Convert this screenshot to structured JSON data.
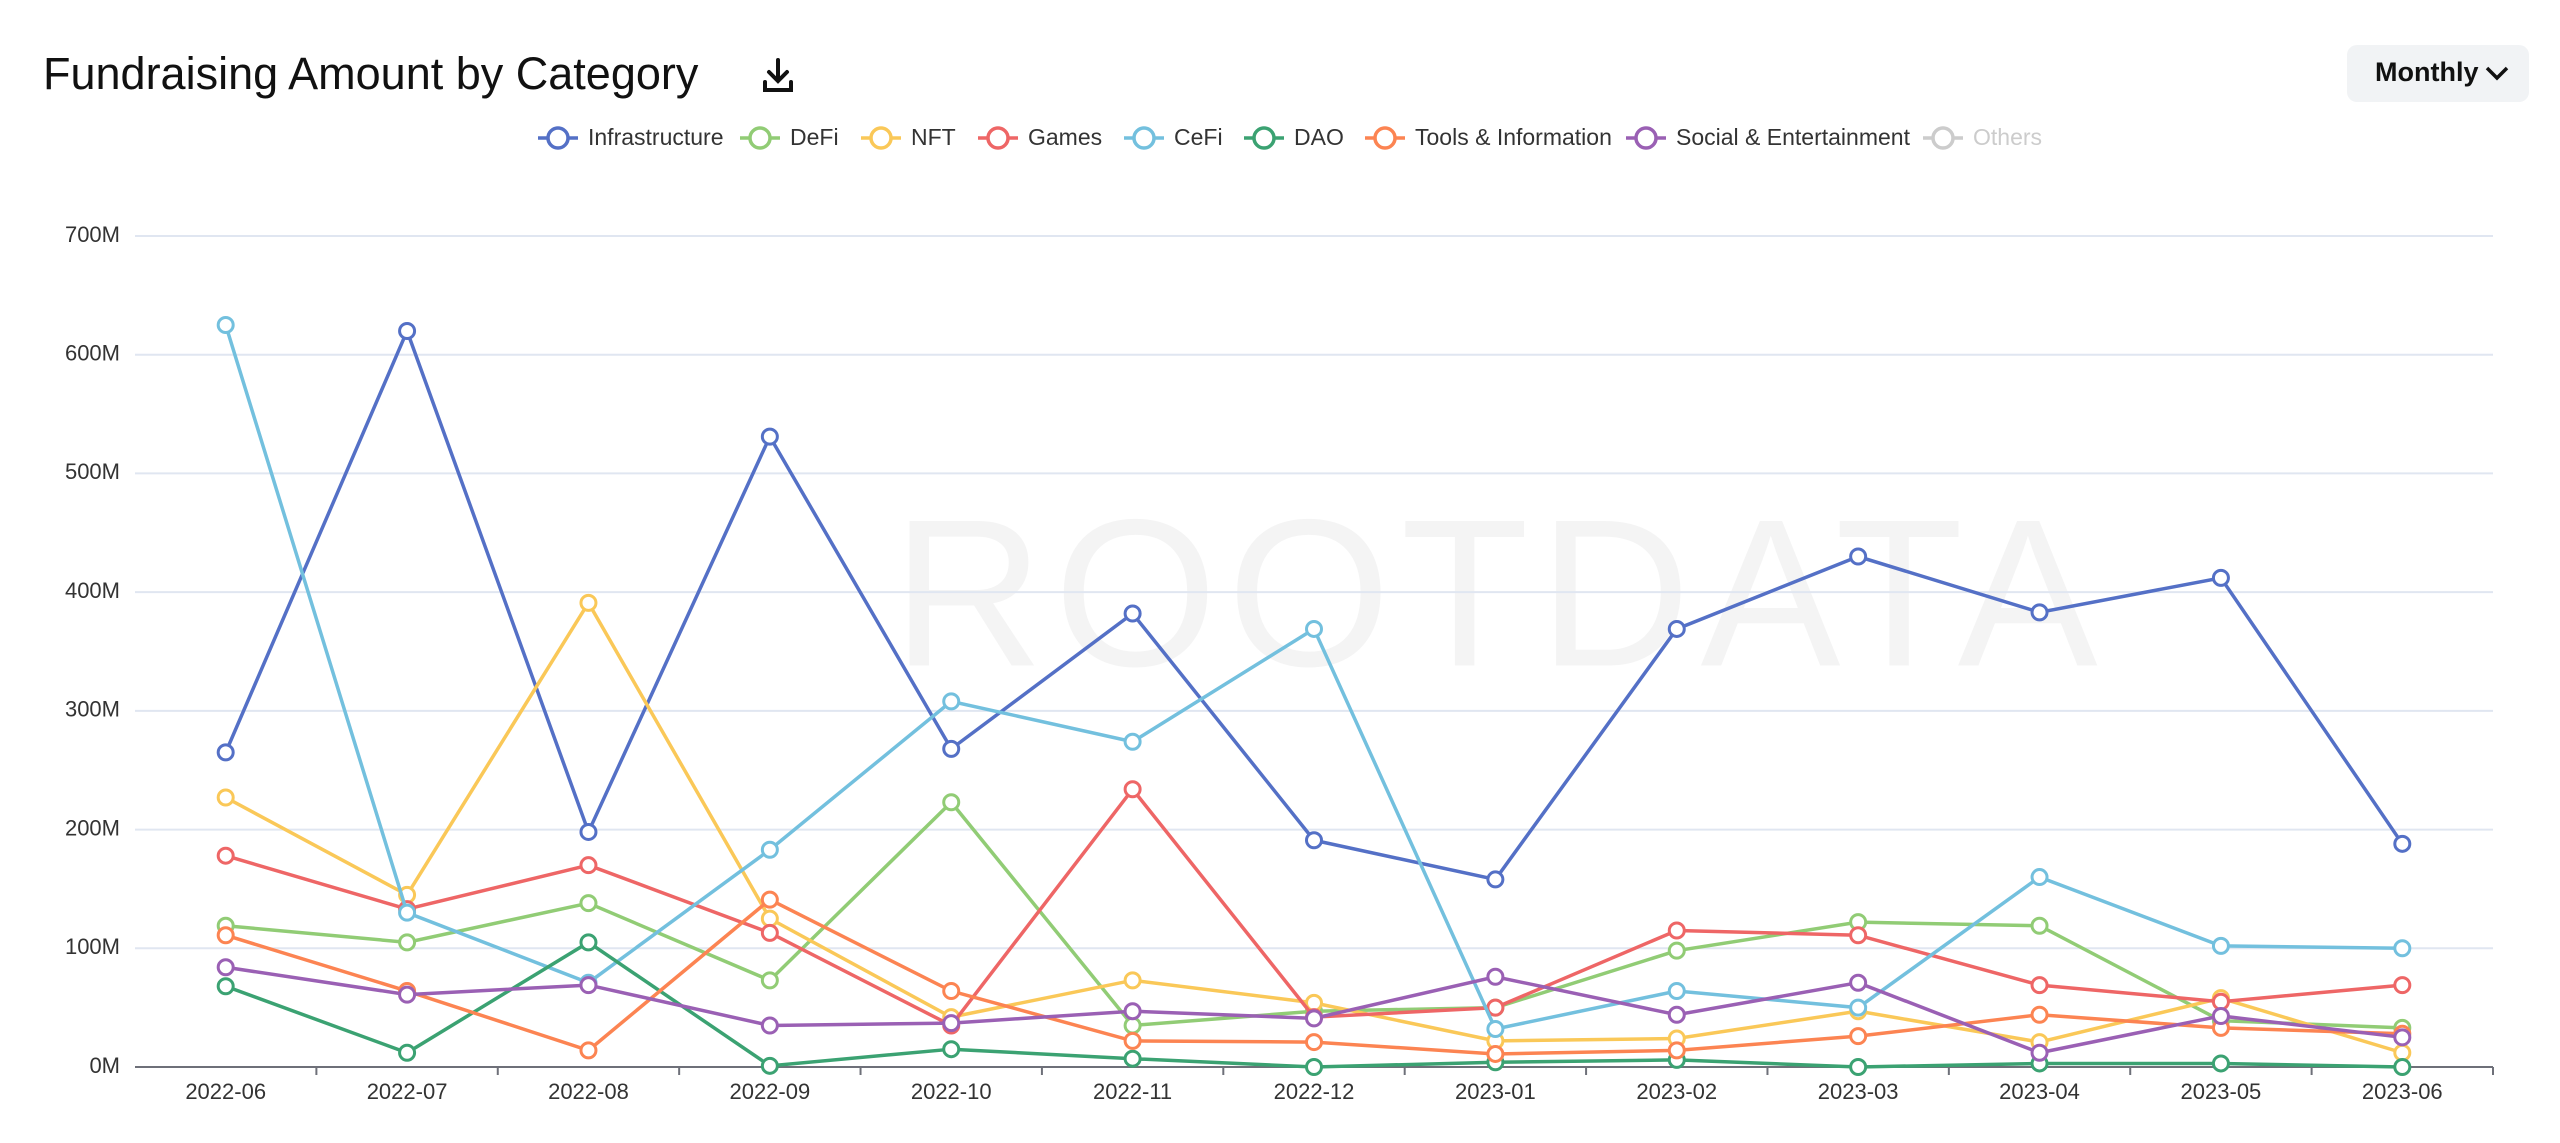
{
  "chart_data": {
    "type": "line",
    "title": "Fundraising Amount by Category",
    "period": "Monthly",
    "watermark": "ROOTDATA",
    "categories": [
      "2022-06",
      "2022-07",
      "2022-08",
      "2022-09",
      "2022-10",
      "2022-11",
      "2022-12",
      "2023-01",
      "2023-02",
      "2023-03",
      "2023-04",
      "2023-05",
      "2023-06"
    ],
    "ylim": [
      0,
      700
    ],
    "yticks": [
      {
        "value": 0,
        "label": "0M"
      },
      {
        "value": 100,
        "label": "100M"
      },
      {
        "value": 200,
        "label": "200M"
      },
      {
        "value": 300,
        "label": "300M"
      },
      {
        "value": 400,
        "label": "400M"
      },
      {
        "value": 500,
        "label": "500M"
      },
      {
        "value": 600,
        "label": "600M"
      },
      {
        "value": 700,
        "label": "700M"
      }
    ],
    "grid": true,
    "legend": "top",
    "series": [
      {
        "name": "Infrastructure",
        "color": "#5470c6",
        "values": [
          265,
          620,
          198,
          531,
          268,
          382,
          191,
          158,
          369,
          430,
          383,
          412,
          188
        ]
      },
      {
        "name": "DeFi",
        "color": "#91cc75",
        "values": [
          119,
          105,
          138,
          73,
          223,
          35,
          47,
          50,
          98,
          122,
          119,
          39,
          33
        ]
      },
      {
        "name": "NFT",
        "color": "#fac858",
        "values": [
          227,
          145,
          391,
          125,
          42,
          73,
          54,
          22,
          24,
          47,
          21,
          58,
          12
        ]
      },
      {
        "name": "Games",
        "color": "#ee6666",
        "values": [
          178,
          133,
          170,
          113,
          35,
          234,
          42,
          50,
          115,
          111,
          69,
          55,
          69
        ]
      },
      {
        "name": "CeFi",
        "color": "#73c0de",
        "values": [
          625,
          130,
          71,
          183,
          308,
          274,
          369,
          32,
          64,
          50,
          160,
          102,
          100
        ]
      },
      {
        "name": "DAO",
        "color": "#3ba272",
        "values": [
          68,
          12,
          105,
          1,
          15,
          7,
          0,
          4,
          6,
          0,
          3,
          3,
          0
        ]
      },
      {
        "name": "Tools & Information",
        "color": "#fc8452",
        "values": [
          111,
          64,
          14,
          141,
          64,
          22,
          21,
          11,
          14,
          26,
          44,
          33,
          28
        ]
      },
      {
        "name": "Social & Entertainment",
        "color": "#9a60b4",
        "values": [
          84,
          61,
          69,
          35,
          37,
          47,
          41,
          76,
          44,
          71,
          12,
          43,
          25
        ]
      },
      {
        "name": "Others",
        "color": "#cccccc",
        "visible": false,
        "values": [
          null,
          null,
          null,
          null,
          null,
          null,
          null,
          null,
          null,
          null,
          null,
          null,
          null
        ]
      }
    ]
  }
}
